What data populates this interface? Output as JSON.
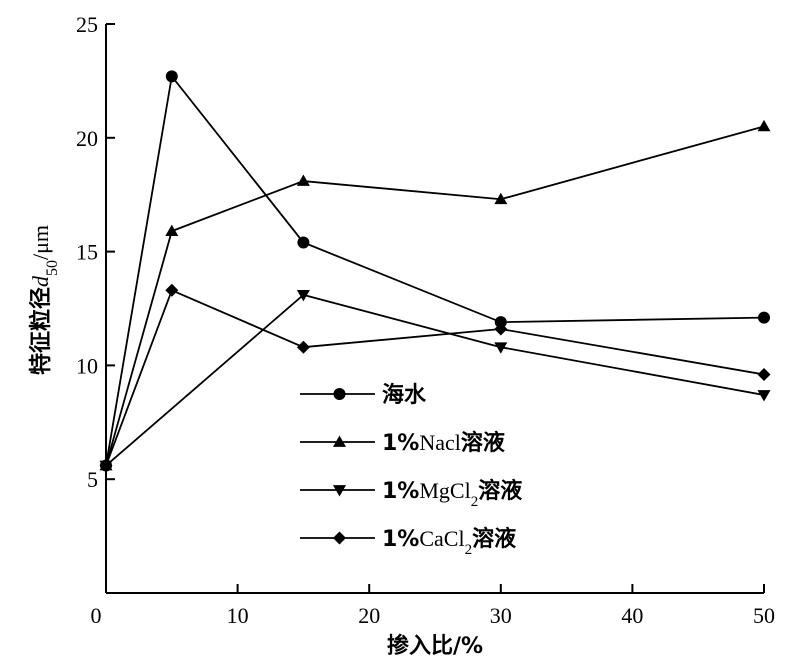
{
  "chart_data": {
    "type": "line",
    "xlabel": "掺入比/%",
    "ylabel_cjk": "特征粒径",
    "ylabel_var": "d",
    "ylabel_sub": "50",
    "ylabel_unit": "/μm",
    "xlim": [
      0,
      50
    ],
    "ylim": [
      0,
      25
    ],
    "xticks": [
      "0",
      "10",
      "20",
      "30",
      "40",
      "50"
    ],
    "yticks": [
      "5",
      "10",
      "15",
      "20",
      "25"
    ],
    "x": [
      0,
      5,
      15,
      30,
      50
    ],
    "series": [
      {
        "name": "海水",
        "marker": "circle",
        "values": [
          5.6,
          22.7,
          15.4,
          11.9,
          12.1
        ],
        "legend": {
          "prefix": "",
          "main": "",
          "sub": "",
          "cjk": "海水"
        }
      },
      {
        "name": "1%Nacl溶液",
        "marker": "triangle-up",
        "values": [
          5.6,
          15.9,
          18.1,
          17.3,
          20.5
        ],
        "legend": {
          "prefix": "1%",
          "main": "Nacl",
          "sub": "",
          "cjk": "溶液"
        }
      },
      {
        "name": "1%MgCl2溶液",
        "marker": "triangle-down",
        "values": [
          5.6,
          null,
          13.1,
          10.8,
          8.7
        ],
        "legend": {
          "prefix": "1%",
          "main": "MgCl",
          "sub": "2",
          "cjk": "溶液"
        }
      },
      {
        "name": "1%CaCl2溶液",
        "marker": "diamond",
        "values": [
          5.6,
          13.3,
          10.8,
          11.6,
          9.6
        ],
        "legend": {
          "prefix": "1%",
          "main": "CaCl",
          "sub": "2",
          "cjk": "溶液"
        }
      }
    ],
    "legend_position": "middle-left",
    "grid": false
  }
}
